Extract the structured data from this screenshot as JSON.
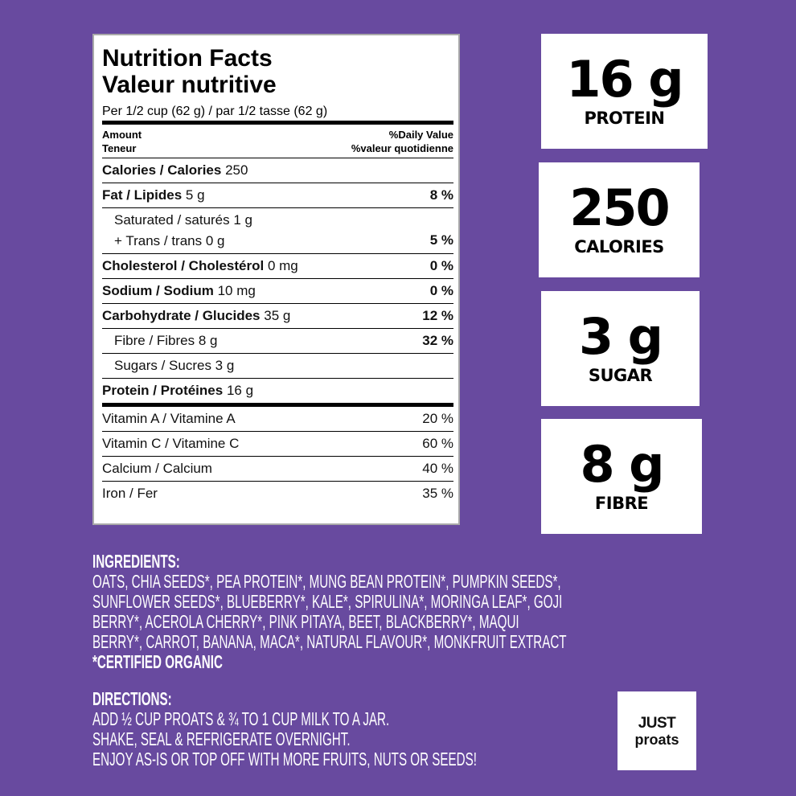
{
  "nutrition": {
    "title_en": "Nutrition Facts",
    "title_fr": "Valeur nutritive",
    "serving": "Per 1/2 cup (62 g) / par 1/2 tasse (62 g)",
    "amount_en": "Amount",
    "amount_fr": "Teneur",
    "dv_en": "%Daily Value",
    "dv_fr": "%valeur quotidienne",
    "rows": [
      {
        "name": "Calories / Calories",
        "amount": "250"
      },
      {
        "name": "Fat / Lipides",
        "amount": "5 g",
        "dv": "8 %"
      },
      {
        "lines": [
          "Saturated / saturés 1 g",
          "+ Trans / trans 0 g"
        ],
        "dv": "5 %"
      },
      {
        "name": "Cholesterol / Cholestérol",
        "amount": "0 mg",
        "dv": "0 %"
      },
      {
        "name": "Sodium / Sodium",
        "amount": "10 mg",
        "dv": "0 %"
      },
      {
        "name": "Carbohydrate / Glucides",
        "amount": "35 g",
        "dv": "12 %"
      },
      {
        "text": "Fibre / Fibres 8 g",
        "dv": "32 %"
      },
      {
        "text": "Sugars / Sucres 3 g"
      },
      {
        "name": "Protein / Protéines",
        "amount": "16 g"
      }
    ],
    "vitamins": [
      {
        "text": "Vitamin A / Vitamine A",
        "dv": "20 %"
      },
      {
        "text": "Vitamin C / Vitamine C",
        "dv": "60 %"
      },
      {
        "text": "Calcium / Calcium",
        "dv": "40 %"
      },
      {
        "text": "Iron / Fer",
        "dv": "35 %"
      }
    ]
  },
  "stats": [
    {
      "value": "16 g",
      "label": "PROTEIN"
    },
    {
      "value": "250",
      "label": "CALORIES"
    },
    {
      "value": "3 g",
      "label": "SUGAR"
    },
    {
      "value": "8 g",
      "label": "FIBRE"
    }
  ],
  "ingredients": {
    "heading": "INGREDIENTS:",
    "lines": [
      "OATS, CHIA SEEDS*, PEA PROTEIN*, MUNG BEAN PROTEIN*, PUMPKIN SEEDS*,",
      "SUNFLOWER SEEDS*, BLUEBERRY*, KALE*, SPIRULINA*, MORINGA LEAF*, GOJI",
      "BERRY*, ACEROLA CHERRY*, PINK PITAYA, BEET, BLACKBERRY*, MAQUI",
      "BERRY*, CARROT, BANANA, MACA*, NATURAL FLAVOUR*, MONKFRUIT EXTRACT"
    ],
    "note": "*CERTIFIED ORGANIC"
  },
  "directions": {
    "heading": "DIRECTIONS:",
    "lines": [
      "ADD ½ CUP PROATS & ¾ TO 1 CUP MILK TO A JAR.",
      "SHAKE, SEAL & REFRIGERATE OVERNIGHT.",
      "ENJOY AS-IS OR TOP OFF WITH MORE FRUITS, NUTS OR SEEDS!"
    ]
  },
  "logo": [
    "JUST",
    "proats"
  ]
}
